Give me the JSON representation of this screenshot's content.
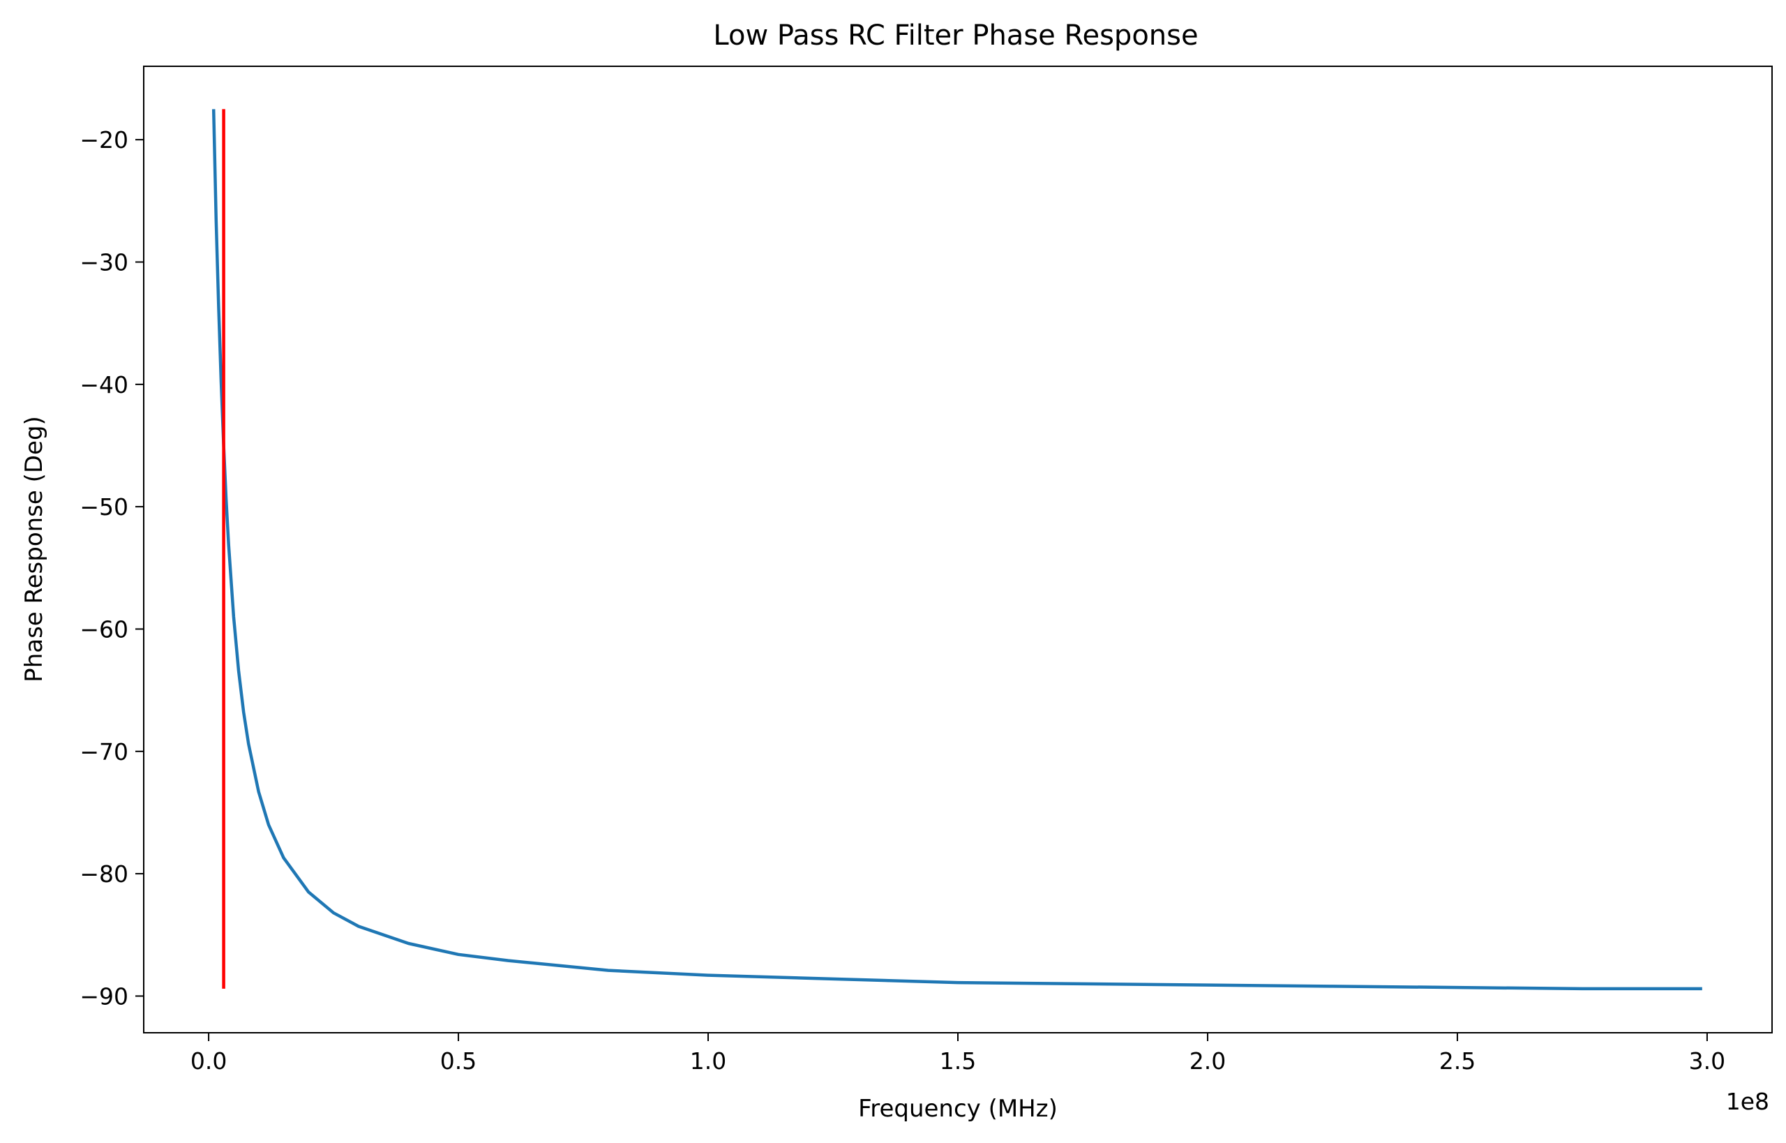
{
  "chart_data": {
    "type": "line",
    "title": "Low Pass RC Filter Phase Response",
    "xlabel": "Frequency (MHz)",
    "ylabel": "Phase Response (Deg)",
    "x_offset_text": "1e8",
    "xlim": [
      -0.13,
      3.13
    ],
    "ylim": [
      -93,
      -14
    ],
    "xticks": [
      0.0,
      0.5,
      1.0,
      1.5,
      2.0,
      2.5,
      3.0
    ],
    "xtick_labels": [
      "0.0",
      "0.5",
      "1.0",
      "1.5",
      "2.0",
      "2.5",
      "3.0"
    ],
    "yticks": [
      -20,
      -30,
      -40,
      -50,
      -60,
      -70,
      -80,
      -90
    ],
    "ytick_labels": [
      "−20",
      "−30",
      "−40",
      "−50",
      "−60",
      "−70",
      "−80",
      "−90"
    ],
    "grid": false,
    "series": [
      {
        "color": "#1f77b4",
        "x": [
          0.01,
          0.015,
          0.02,
          0.025,
          0.03,
          0.035,
          0.04,
          0.05,
          0.06,
          0.07,
          0.08,
          0.1,
          0.12,
          0.15,
          0.2,
          0.25,
          0.3,
          0.4,
          0.5,
          0.6,
          0.8,
          1.0,
          1.25,
          1.5,
          1.75,
          2.0,
          2.25,
          2.5,
          2.75,
          2.99
        ],
        "y": [
          -17.5,
          -26.6,
          -33.7,
          -39.8,
          -45.0,
          -49.4,
          -53.1,
          -59.0,
          -63.4,
          -66.8,
          -69.4,
          -73.3,
          -76.0,
          -78.7,
          -81.5,
          -83.2,
          -84.3,
          -85.7,
          -86.6,
          -87.1,
          -87.9,
          -88.3,
          -88.6,
          -88.9,
          -89.0,
          -89.1,
          -89.2,
          -89.3,
          -89.4,
          -89.4
        ]
      },
      {
        "color": "#ff0000",
        "x": [
          0.03,
          0.03
        ],
        "y": [
          -17.5,
          -89.4
        ]
      }
    ]
  }
}
